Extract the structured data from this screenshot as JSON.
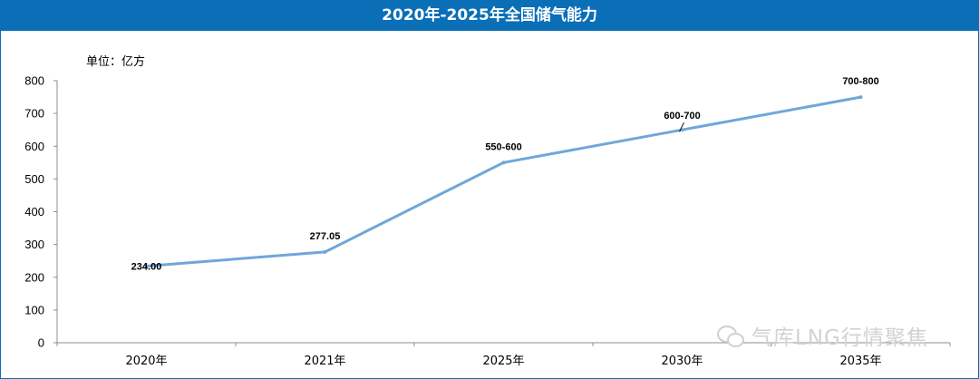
{
  "title": "2020年-2025年全国储气能力",
  "unit_label": "单位：亿方",
  "watermark": {
    "icon": "wechat-icon",
    "text": "气库LNG行情聚焦"
  },
  "colors": {
    "title_bg": "#0b6fb8",
    "line": "#6fa7d9"
  },
  "chart_data": {
    "type": "line",
    "title": "2020年-2025年全国储气能力",
    "categories": [
      "2020年",
      "2021年",
      "2025年",
      "2030年",
      "2035年"
    ],
    "series": [
      {
        "values": [
          234,
          277.05,
          550,
          650,
          750
        ]
      }
    ],
    "data_labels": [
      "234.00",
      "277.05",
      "550-600",
      "600-700",
      "700-800"
    ],
    "ylim": [
      0,
      800
    ],
    "yticks": [
      0,
      100,
      200,
      300,
      400,
      500,
      600,
      700,
      800
    ],
    "ylabel": "单位：亿方",
    "grid": false,
    "legend": "none"
  }
}
